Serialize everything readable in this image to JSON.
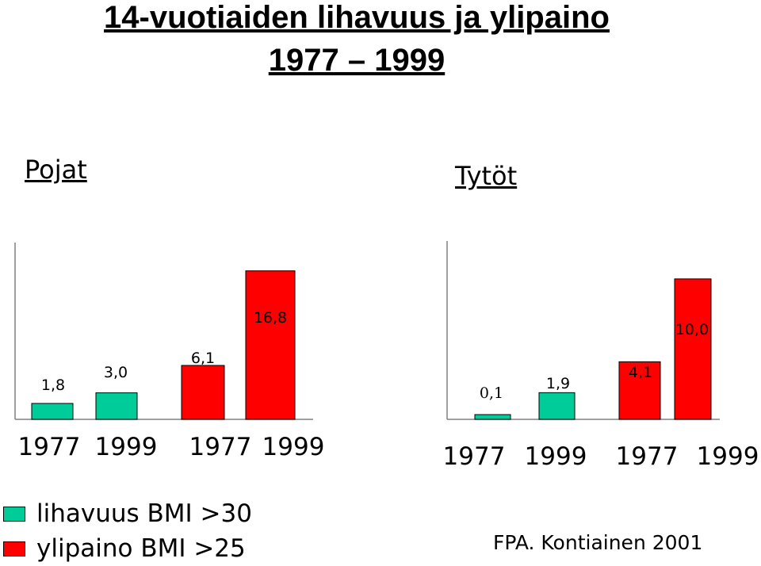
{
  "title_line1": "14-vuotiaiden lihavuus ja ylipaino",
  "title_line2": "1977 – 1999",
  "source": "FPA. Kontiainen 2001",
  "colors": {
    "lihavuus": "#00cc99",
    "ylipaino": "#ff0000"
  },
  "chart_data": [
    {
      "type": "bar",
      "title": "Pojat",
      "categories": [
        "1977",
        "1999",
        "1977",
        "1999"
      ],
      "series": [
        {
          "name": "lihavuus BMI >30",
          "values": [
            1.8,
            3.0,
            null,
            null
          ],
          "labels": [
            "1,8",
            "3,0",
            "",
            ""
          ]
        },
        {
          "name": "ylipaino BMI >25",
          "values": [
            null,
            null,
            6.1,
            16.8
          ],
          "labels": [
            "",
            "",
            "6,1",
            "16,8"
          ]
        }
      ],
      "ylim": [
        0,
        20
      ],
      "grid": false,
      "legend": "bottom-left"
    },
    {
      "type": "bar",
      "title": "Tytöt",
      "categories": [
        "1977",
        "1999",
        "1977",
        "1999"
      ],
      "series": [
        {
          "name": "lihavuus BMI >30",
          "values": [
            0.1,
            1.9,
            null,
            null
          ],
          "labels": [
            "0,1",
            "1,9",
            "",
            ""
          ]
        },
        {
          "name": "ylipaino BMI >25",
          "values": [
            null,
            null,
            4.1,
            10.0
          ],
          "labels": [
            "",
            "",
            "4,1",
            "10,0"
          ]
        }
      ],
      "ylim": [
        0,
        12.7
      ],
      "grid": false,
      "legend": "bottom-left"
    }
  ]
}
